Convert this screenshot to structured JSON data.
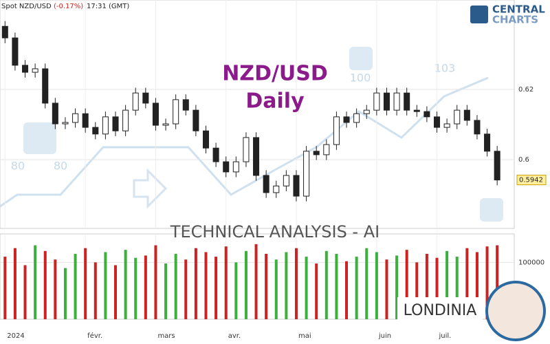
{
  "header": {
    "instrument": "Spot NZD/USD",
    "change": "(-0.17%)",
    "time": "17:31 (GMT)"
  },
  "logo": {
    "line1": "CENTRAL",
    "line2": "CHARTS"
  },
  "watermark": {
    "title": "NZD/USD",
    "subtitle": "Daily",
    "banner": "TECHNICAL  ANALYSIS - AI",
    "brand": "LONDINIA",
    "numbers": [
      "80",
      "80",
      "100",
      "103"
    ]
  },
  "chart_data": {
    "type": "candlestick",
    "xlim": [
      -0.5,
      50.7
    ],
    "xticks": [
      {
        "value": 0,
        "label": "2024"
      },
      {
        "value": 8,
        "label": "févr."
      },
      {
        "value": 15,
        "label": "mars"
      },
      {
        "value": 22,
        "label": "avr."
      },
      {
        "value": 29,
        "label": "mai"
      },
      {
        "value": 37,
        "label": "juin"
      },
      {
        "value": 43,
        "label": "juil."
      }
    ],
    "ylim": [
      0.5804,
      0.6455
    ],
    "yticks": [
      0.6,
      0.62
    ],
    "grid": true,
    "up_color": "#ffffff",
    "down_color": "#222222",
    "open": [
      0.638,
      0.6347,
      0.6269,
      0.6249,
      0.6259,
      0.6161,
      0.6102,
      0.6106,
      0.6131,
      0.6092,
      0.6073,
      0.6122,
      0.6082,
      0.6141,
      0.619,
      0.6161,
      0.6098,
      0.6102,
      0.6171,
      0.6141,
      0.6082,
      0.6033,
      0.5994,
      0.5965,
      0.5994,
      0.6063,
      0.5955,
      0.5906,
      0.5925,
      0.5955,
      0.5896,
      0.6024,
      0.6014,
      0.6043,
      0.6122,
      0.6106,
      0.6131,
      0.6141,
      0.619,
      0.6141,
      0.619,
      0.6141,
      0.6137,
      0.6122,
      0.6092,
      0.6102,
      0.6141,
      0.6112,
      0.6073,
      0.6024
    ],
    "high": [
      0.6395,
      0.6362,
      0.6284,
      0.6274,
      0.6274,
      0.6176,
      0.6121,
      0.6146,
      0.6146,
      0.6107,
      0.6137,
      0.6137,
      0.6156,
      0.6205,
      0.6205,
      0.6176,
      0.6117,
      0.6186,
      0.6186,
      0.6156,
      0.6097,
      0.6048,
      0.6009,
      0.6009,
      0.6078,
      0.6078,
      0.597,
      0.594,
      0.597,
      0.597,
      0.6039,
      0.6039,
      0.6058,
      0.6137,
      0.6137,
      0.6146,
      0.6156,
      0.6205,
      0.6205,
      0.6205,
      0.6205,
      0.6156,
      0.6152,
      0.6137,
      0.6117,
      0.6156,
      0.6156,
      0.6127,
      0.6088,
      0.6039
    ],
    "low": [
      0.6332,
      0.6254,
      0.6234,
      0.6234,
      0.6146,
      0.6087,
      0.6087,
      0.6091,
      0.6077,
      0.6058,
      0.6058,
      0.6067,
      0.6067,
      0.6126,
      0.6146,
      0.6083,
      0.6083,
      0.6087,
      0.6126,
      0.6067,
      0.6018,
      0.5979,
      0.595,
      0.595,
      0.5979,
      0.594,
      0.5891,
      0.5891,
      0.591,
      0.5881,
      0.5881,
      0.5999,
      0.5999,
      0.6028,
      0.6091,
      0.6091,
      0.6116,
      0.6126,
      0.6126,
      0.6126,
      0.6126,
      0.6122,
      0.6107,
      0.6077,
      0.6077,
      0.6087,
      0.6097,
      0.6058,
      0.6009,
      0.5927
    ],
    "close": [
      0.6347,
      0.6269,
      0.6249,
      0.6259,
      0.6161,
      0.6102,
      0.6106,
      0.6131,
      0.6092,
      0.6073,
      0.6122,
      0.6082,
      0.6141,
      0.619,
      0.6161,
      0.6098,
      0.6102,
      0.6171,
      0.6141,
      0.6082,
      0.6033,
      0.5994,
      0.5965,
      0.5994,
      0.6063,
      0.5955,
      0.5906,
      0.5925,
      0.5955,
      0.5896,
      0.6024,
      0.6014,
      0.6043,
      0.6122,
      0.6106,
      0.6131,
      0.6141,
      0.619,
      0.6141,
      0.619,
      0.6141,
      0.6137,
      0.6122,
      0.6092,
      0.6102,
      0.6141,
      0.6112,
      0.6073,
      0.6024,
      0.5942
    ],
    "volume": [
      110000,
      125000,
      95000,
      130000,
      120000,
      105000,
      90000,
      115000,
      125000,
      100000,
      118000,
      95000,
      122000,
      108000,
      112000,
      130000,
      98000,
      115000,
      105000,
      125000,
      118000,
      110000,
      128000,
      100000,
      120000,
      132000,
      115000,
      105000,
      118000,
      125000,
      110000,
      98000,
      120000,
      115000,
      102000,
      110000,
      125000,
      118000,
      105000,
      112000,
      122000,
      100000,
      115000,
      108000,
      120000,
      110000,
      125000,
      118000,
      128000,
      130000
    ],
    "volume_ylim": [
      0,
      150000
    ],
    "volume_yticks": [
      100000
    ],
    "up_volume_color": "#3cb03c",
    "down_volume_color": "#cc2222"
  }
}
